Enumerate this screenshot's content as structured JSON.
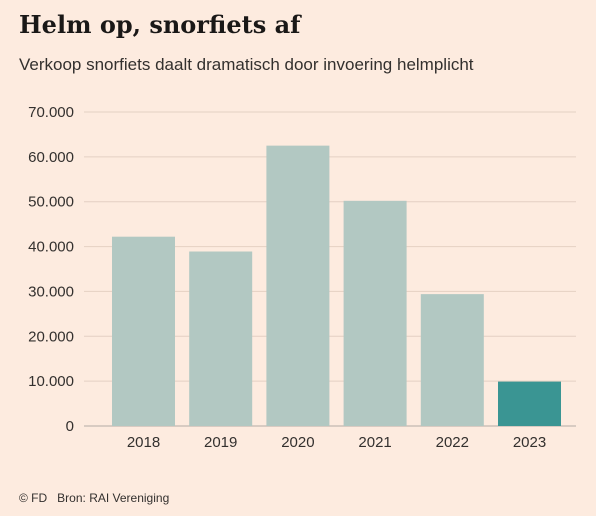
{
  "header": {
    "title": "Helm op, snorfiets af",
    "subtitle": "Verkoop snorfiets daalt dramatisch door invoering helmplicht"
  },
  "footer": {
    "credit": "© FD",
    "source": "Bron: RAI Vereniging"
  },
  "colors": {
    "bar": "#b2c8c2",
    "highlight": "#3a9593",
    "gridline": "#e4d0c3",
    "baseline": "#b4aba4",
    "background": "#fdebdf"
  },
  "chart_data": {
    "type": "bar",
    "title": "Helm op, snorfiets af",
    "subtitle": "Verkoop snorfiets daalt dramatisch door invoering helmplicht",
    "categories": [
      "2018",
      "2019",
      "2020",
      "2021",
      "2022",
      "2023"
    ],
    "values": [
      42200,
      38900,
      62500,
      50200,
      29400,
      9900
    ],
    "highlight_category": "2023",
    "ylim": [
      0,
      70000
    ],
    "yticks": [
      0,
      10000,
      20000,
      30000,
      40000,
      50000,
      60000,
      70000
    ],
    "ytick_labels": [
      "0",
      "10.000",
      "20.000",
      "30.000",
      "40.000",
      "50.000",
      "60.000",
      "70.000"
    ],
    "grid": true,
    "legend": "none"
  }
}
